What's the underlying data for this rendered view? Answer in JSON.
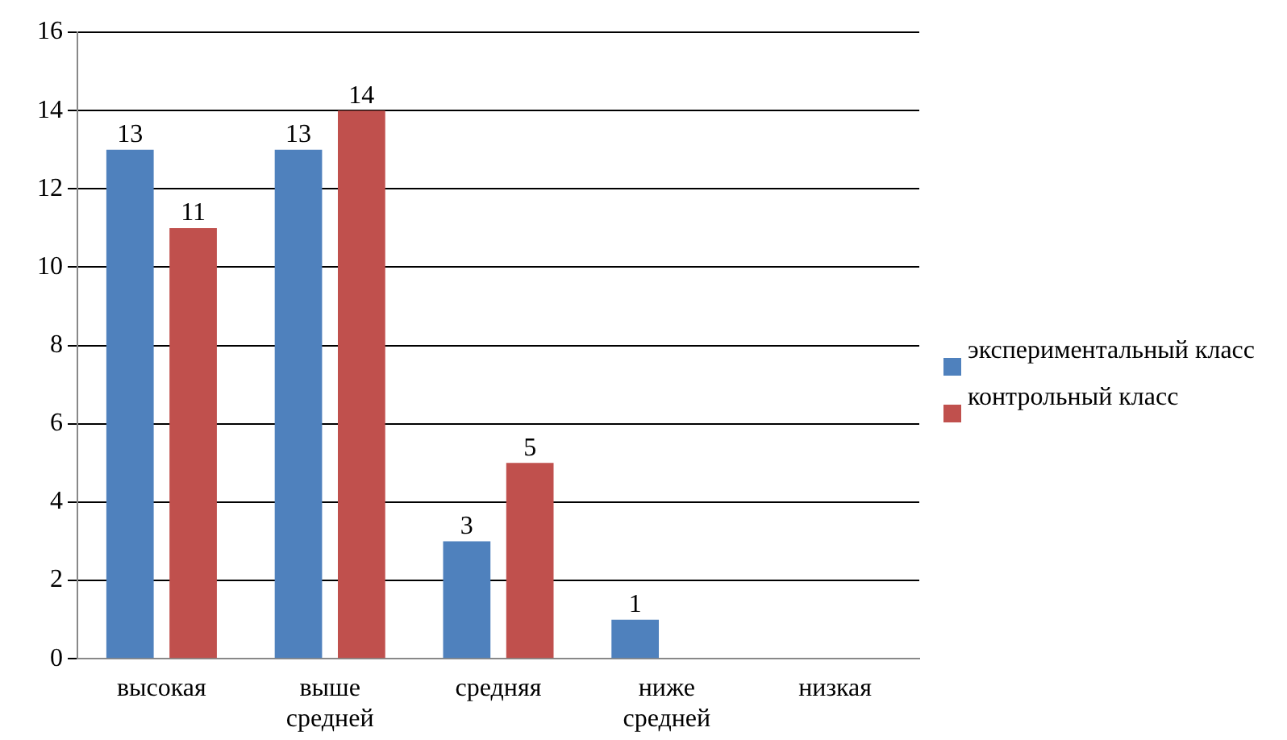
{
  "chart_data": {
    "type": "bar",
    "categories": [
      "высокая",
      "выше средней",
      "средняя",
      "ниже средней",
      "низкая"
    ],
    "series": [
      {
        "name": "экспериментальный класс",
        "color": "#4f81bd",
        "values": [
          13,
          13,
          3,
          1,
          0
        ],
        "value_labels": [
          "13",
          "13",
          "3",
          "1",
          null
        ]
      },
      {
        "name": "контрольный класс",
        "color": "#c0504d",
        "values": [
          11,
          14,
          5,
          0,
          0
        ],
        "value_labels": [
          "11",
          "14",
          "5",
          null,
          null
        ]
      }
    ],
    "ylim": [
      0,
      16
    ],
    "yticks": [
      0,
      2,
      4,
      6,
      8,
      10,
      12,
      14,
      16
    ],
    "grid": "y",
    "legend": "right"
  }
}
